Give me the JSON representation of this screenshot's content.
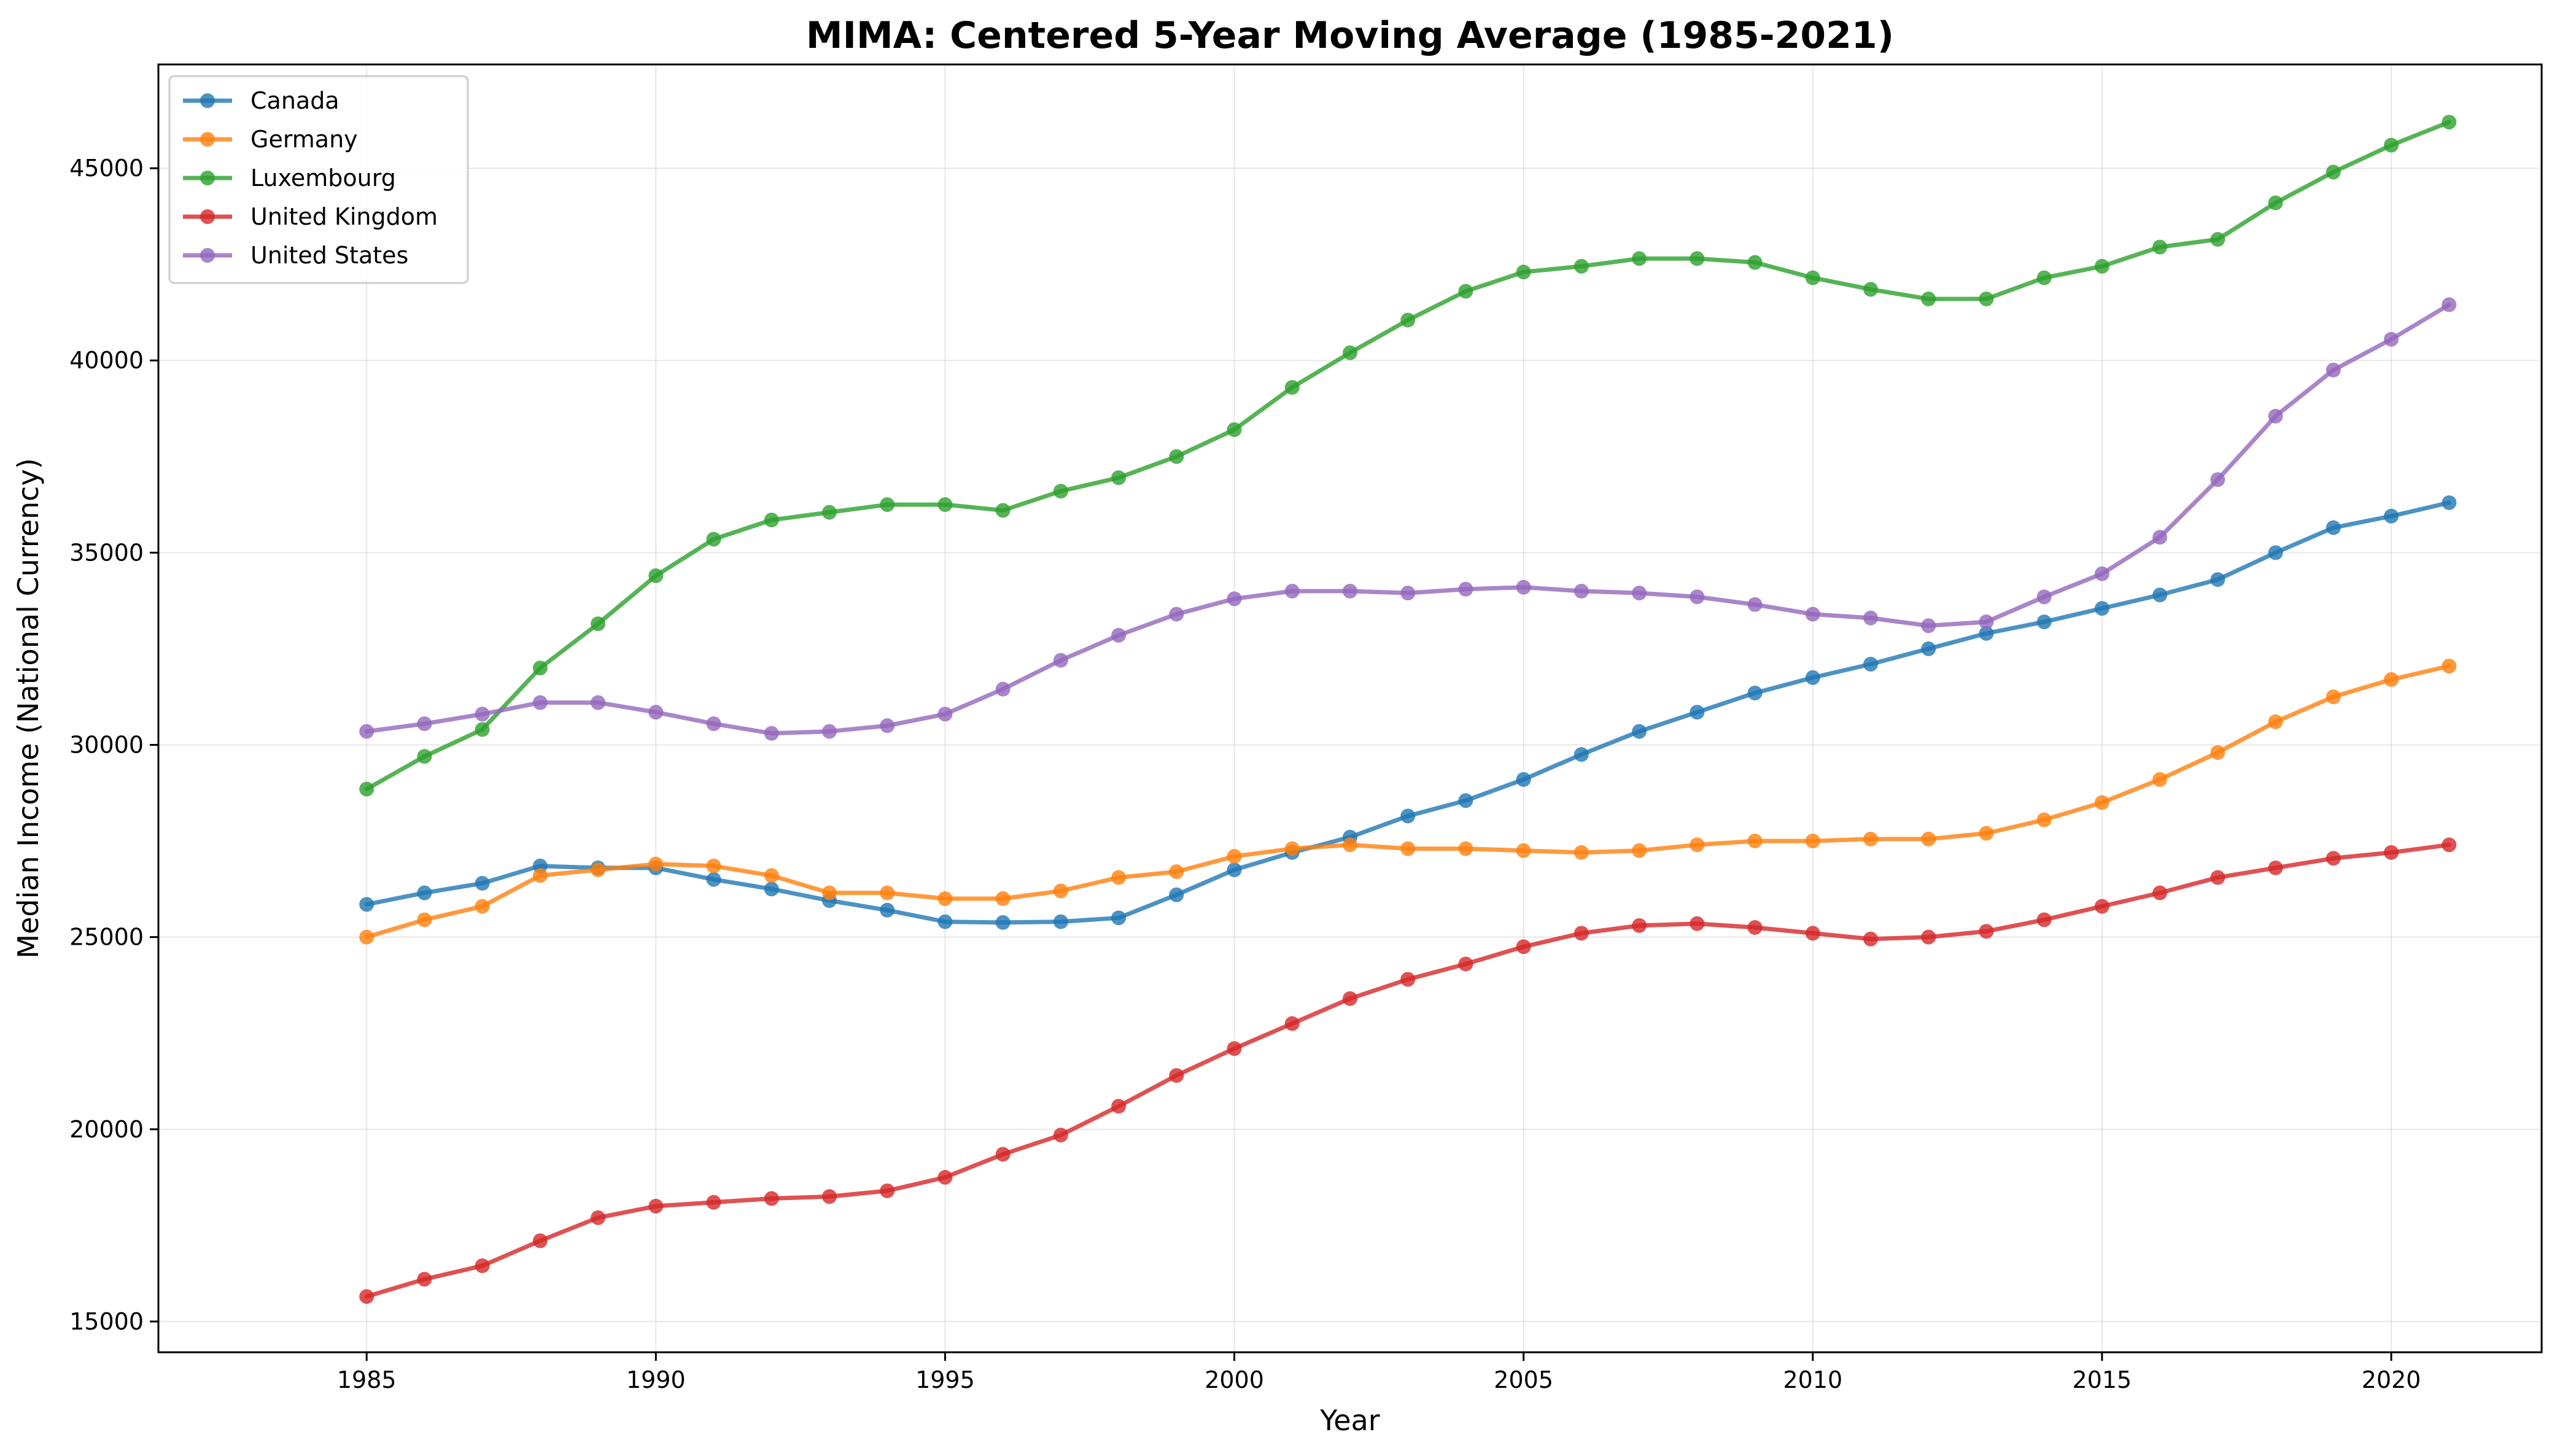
{
  "chart_data": {
    "type": "line",
    "title": "MIMA: Centered 5-Year Moving Average (1985-2021)",
    "xlabel": "Year",
    "ylabel": "Median Income (National Currency)",
    "xlim": [
      1981.4,
      2022.6
    ],
    "ylim": [
      14200,
      47700
    ],
    "xticks": [
      1985,
      1990,
      1995,
      2000,
      2005,
      2010,
      2015,
      2020
    ],
    "yticks": [
      15000,
      20000,
      25000,
      30000,
      35000,
      40000,
      45000
    ],
    "grid": true,
    "legend_position": "top-left",
    "x": [
      1985,
      1986,
      1987,
      1988,
      1989,
      1990,
      1991,
      1992,
      1993,
      1994,
      1995,
      1996,
      1997,
      1998,
      1999,
      2000,
      2001,
      2002,
      2003,
      2004,
      2005,
      2006,
      2007,
      2008,
      2009,
      2010,
      2011,
      2012,
      2013,
      2014,
      2015,
      2016,
      2017,
      2018,
      2019,
      2020,
      2021
    ],
    "series": [
      {
        "name": "Canada",
        "color": "#1f77b4",
        "values": [
          25850,
          26150,
          26400,
          26850,
          26800,
          26800,
          26500,
          26250,
          25950,
          25700,
          25400,
          25380,
          25400,
          25500,
          26100,
          26750,
          27200,
          27600,
          28150,
          28550,
          29100,
          29750,
          30350,
          30850,
          31350,
          31750,
          32100,
          32500,
          32900,
          33200,
          33550,
          33900,
          34300,
          35000,
          35650,
          35950,
          36300
        ]
      },
      {
        "name": "Germany",
        "color": "#ff7f0e",
        "values": [
          25000,
          25450,
          25800,
          26600,
          26750,
          26900,
          26850,
          26600,
          26150,
          26150,
          26000,
          26000,
          26200,
          26550,
          26700,
          27100,
          27300,
          27400,
          27300,
          27300,
          27250,
          27200,
          27250,
          27400,
          27500,
          27500,
          27550,
          27550,
          27700,
          28050,
          28500,
          29100,
          29800,
          30600,
          31250,
          31700,
          32050
        ]
      },
      {
        "name": "Luxembourg",
        "color": "#2ca02c",
        "values": [
          28850,
          29700,
          30400,
          32000,
          33150,
          34400,
          35350,
          35850,
          36050,
          36250,
          36250,
          36100,
          36600,
          36950,
          37500,
          38200,
          39300,
          40200,
          41050,
          41800,
          42300,
          42450,
          42650,
          42650,
          42550,
          42150,
          41850,
          41600,
          41600,
          42150,
          42450,
          42950,
          43150,
          44100,
          44900,
          45600,
          46200
        ]
      },
      {
        "name": "United Kingdom",
        "color": "#d62728",
        "values": [
          15650,
          16100,
          16450,
          17100,
          17700,
          18000,
          18100,
          18200,
          18250,
          18400,
          18750,
          19350,
          19850,
          20600,
          21400,
          22100,
          22750,
          23400,
          23900,
          24300,
          24750,
          25100,
          25300,
          25350,
          25250,
          25100,
          24950,
          25000,
          25150,
          25450,
          25800,
          26150,
          26550,
          26800,
          27050,
          27200,
          27400
        ]
      },
      {
        "name": "United States",
        "color": "#9467bd",
        "values": [
          30350,
          30550,
          30800,
          31100,
          31100,
          30850,
          30550,
          30300,
          30350,
          30500,
          30800,
          31450,
          32200,
          32850,
          33400,
          33800,
          34000,
          34000,
          33950,
          34050,
          34100,
          34000,
          33950,
          33850,
          33650,
          33400,
          33300,
          33100,
          33200,
          33850,
          34450,
          35400,
          36900,
          38550,
          39750,
          40550,
          41450
        ]
      }
    ]
  }
}
